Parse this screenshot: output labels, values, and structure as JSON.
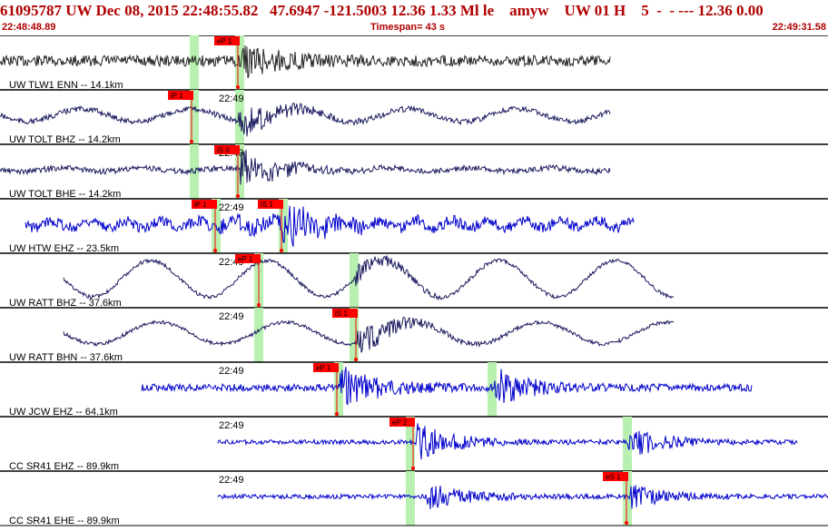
{
  "header": {
    "line1": "61095787 UW Dec 08, 2015 22:48:55.82   47.6947 -121.5003 12.36 1.33 Ml le    amyw    UW 01 H    5  -  - --- 12.36 0.00",
    "time_start": "22:48:48.89",
    "timespan": "Timespan=  43 s",
    "time_end": "22:49:31.58"
  },
  "colors": {
    "header_text": "#b00000",
    "pick_flag": "#ff0000",
    "pick_window": "#b8f0b0",
    "trace_blue": "#0000cc",
    "trace_navy": "#1a1a5e",
    "trace_dark": "#222222"
  },
  "tick_label": "22:49",
  "channels": [
    {
      "label": "UW TLW1 ENN -- 14.1km",
      "color": "dark",
      "picks": [
        "eP 1"
      ],
      "tick": false
    },
    {
      "label": "UW TOLT BHZ -- 14.2km",
      "color": "navy",
      "picks": [
        "iP 1"
      ],
      "tick": true
    },
    {
      "label": "UW TOLT BHE -- 14.2km",
      "color": "navy",
      "picks": [
        "iS 0"
      ],
      "tick": true
    },
    {
      "label": "UW HTW EHZ -- 23.5km",
      "color": "blue",
      "picks": [
        "iP 1",
        "iS 1"
      ],
      "tick": true
    },
    {
      "label": "UW RATT BHZ -- 37.6km",
      "color": "navy",
      "picks": [
        "eP 1"
      ],
      "tick": true
    },
    {
      "label": "UW RATT BHN -- 37.6km",
      "color": "navy",
      "picks": [
        "iS 1"
      ],
      "tick": true
    },
    {
      "label": "UW JCW EHZ -- 64.1km",
      "color": "blue",
      "picks": [
        "eP 1"
      ],
      "tick": true
    },
    {
      "label": "CC SR41 EHZ -- 89.9km",
      "color": "blue",
      "picks": [
        "eP 2"
      ],
      "tick": true
    },
    {
      "label": "CC SR41 EHE -- 89.9km",
      "color": "blue",
      "picks": [
        "eS 1"
      ],
      "tick": true
    }
  ]
}
